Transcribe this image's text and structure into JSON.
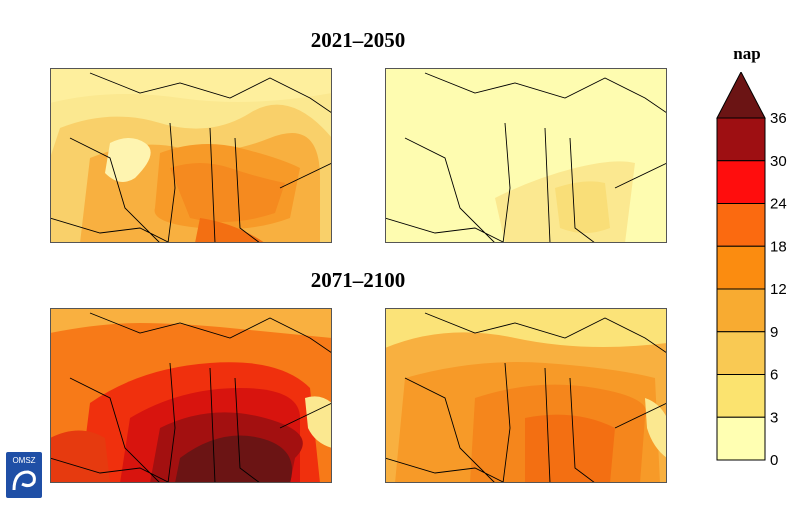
{
  "periods": [
    "2021–2050",
    "2071–2100"
  ],
  "legend": {
    "unit": "nap",
    "ticks": [
      "36",
      "30",
      "24",
      "18",
      "12",
      "9",
      "6",
      "3",
      "0"
    ],
    "colors_top_to_bottom": [
      "#9e0f12",
      "#ff0d0d",
      "#fb6a10",
      "#fb8c10",
      "#f8ab31",
      "#f9c953",
      "#fbe36f",
      "#ffffb2"
    ],
    "overflow_color": "#6b1414"
  },
  "maps": [
    {
      "period": "2021–2050",
      "model": "left",
      "base_color": "#fbe890",
      "intensity": "low-medium"
    },
    {
      "period": "2021–2050",
      "model": "right",
      "base_color": "#fefcb0",
      "intensity": "low"
    },
    {
      "period": "2071–2100",
      "model": "left",
      "base_color": "#f77a18",
      "intensity": "very-high"
    },
    {
      "period": "2071–2100",
      "model": "right",
      "base_color": "#f8b040",
      "intensity": "medium-high"
    }
  ],
  "logo": {
    "text": "OMSZ"
  },
  "colors": {
    "border_line": "#000000",
    "tick_color": "#333333"
  }
}
